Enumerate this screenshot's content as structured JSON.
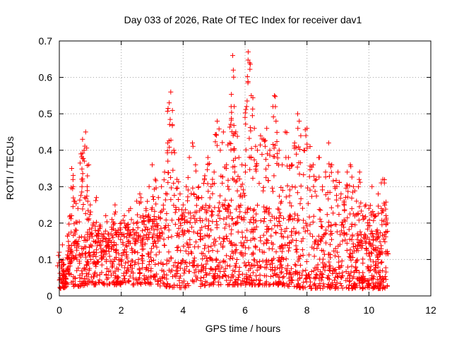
{
  "chart_data": {
    "type": "scatter",
    "title": "Day 033 of 2026, Rate Of TEC Index for receiver dav1",
    "xlabel": "GPS time / hours",
    "ylabel": "ROTI / TECUs",
    "xlim": [
      0,
      12
    ],
    "ylim": [
      0,
      0.7
    ],
    "x_ticks": [
      "0",
      "2",
      "4",
      "6",
      "8",
      "10",
      "12"
    ],
    "y_ticks": [
      "0",
      "0.1",
      "0.2",
      "0.3",
      "0.4",
      "0.5",
      "0.6",
      "0.7"
    ],
    "grid": true,
    "marker": "plus",
    "color": "#ff0000",
    "series": [
      {
        "points": [
          [
            0.0,
            0.12
          ],
          [
            0.1,
            0.14
          ],
          [
            0.15,
            0.07
          ],
          [
            0.2,
            0.05
          ],
          [
            0.3,
            0.17
          ],
          [
            0.35,
            0.22
          ],
          [
            0.4,
            0.35
          ],
          [
            0.45,
            0.3
          ],
          [
            0.5,
            0.26
          ],
          [
            0.55,
            0.18
          ],
          [
            0.6,
            0.24
          ],
          [
            0.7,
            0.39
          ],
          [
            0.75,
            0.43
          ],
          [
            0.8,
            0.4
          ],
          [
            0.85,
            0.45
          ],
          [
            0.9,
            0.3
          ],
          [
            0.95,
            0.36
          ],
          [
            1.0,
            0.25
          ],
          [
            1.1,
            0.2
          ],
          [
            1.2,
            0.27
          ],
          [
            1.3,
            0.19
          ],
          [
            1.4,
            0.15
          ],
          [
            1.5,
            0.22
          ],
          [
            1.6,
            0.17
          ],
          [
            1.7,
            0.21
          ],
          [
            1.8,
            0.25
          ],
          [
            1.9,
            0.18
          ],
          [
            2.0,
            0.2
          ],
          [
            2.1,
            0.22
          ],
          [
            2.2,
            0.18
          ],
          [
            2.3,
            0.24
          ],
          [
            2.4,
            0.2
          ],
          [
            2.5,
            0.26
          ],
          [
            2.6,
            0.28
          ],
          [
            2.7,
            0.22
          ],
          [
            2.8,
            0.24
          ],
          [
            2.9,
            0.3
          ],
          [
            3.0,
            0.36
          ],
          [
            3.1,
            0.32
          ],
          [
            3.2,
            0.27
          ],
          [
            3.3,
            0.3
          ],
          [
            3.4,
            0.34
          ],
          [
            3.5,
            0.42
          ],
          [
            3.55,
            0.53
          ],
          [
            3.6,
            0.56
          ],
          [
            3.65,
            0.47
          ],
          [
            3.7,
            0.4
          ],
          [
            3.8,
            0.32
          ],
          [
            3.9,
            0.28
          ],
          [
            4.0,
            0.25
          ],
          [
            4.1,
            0.3
          ],
          [
            4.2,
            0.38
          ],
          [
            4.3,
            0.42
          ],
          [
            4.4,
            0.36
          ],
          [
            4.5,
            0.3
          ],
          [
            4.6,
            0.27
          ],
          [
            4.7,
            0.33
          ],
          [
            4.8,
            0.38
          ],
          [
            4.9,
            0.3
          ],
          [
            5.0,
            0.34
          ],
          [
            5.1,
            0.48
          ],
          [
            5.2,
            0.4
          ],
          [
            5.3,
            0.45
          ],
          [
            5.4,
            0.36
          ],
          [
            5.5,
            0.42
          ],
          [
            5.55,
            0.52
          ],
          [
            5.6,
            0.66
          ],
          [
            5.62,
            0.62
          ],
          [
            5.65,
            0.52
          ],
          [
            5.7,
            0.45
          ],
          [
            5.8,
            0.38
          ],
          [
            5.9,
            0.36
          ],
          [
            6.0,
            0.49
          ],
          [
            6.05,
            0.52
          ],
          [
            6.1,
            0.67
          ],
          [
            6.15,
            0.64
          ],
          [
            6.2,
            0.55
          ],
          [
            6.3,
            0.46
          ],
          [
            6.4,
            0.4
          ],
          [
            6.5,
            0.44
          ],
          [
            6.6,
            0.43
          ],
          [
            6.7,
            0.46
          ],
          [
            6.8,
            0.4
          ],
          [
            6.9,
            0.52
          ],
          [
            6.95,
            0.55
          ],
          [
            7.0,
            0.48
          ],
          [
            7.1,
            0.4
          ],
          [
            7.2,
            0.36
          ],
          [
            7.3,
            0.45
          ],
          [
            7.4,
            0.38
          ],
          [
            7.5,
            0.36
          ],
          [
            7.6,
            0.42
          ],
          [
            7.7,
            0.5
          ],
          [
            7.75,
            0.48
          ],
          [
            7.8,
            0.44
          ],
          [
            7.9,
            0.4
          ],
          [
            8.0,
            0.46
          ],
          [
            8.1,
            0.41
          ],
          [
            8.2,
            0.36
          ],
          [
            8.3,
            0.32
          ],
          [
            8.4,
            0.38
          ],
          [
            8.5,
            0.3
          ],
          [
            8.6,
            0.34
          ],
          [
            8.7,
            0.42
          ],
          [
            8.8,
            0.36
          ],
          [
            8.9,
            0.3
          ],
          [
            9.0,
            0.34
          ],
          [
            9.1,
            0.28
          ],
          [
            9.2,
            0.26
          ],
          [
            9.3,
            0.34
          ],
          [
            9.4,
            0.36
          ],
          [
            9.5,
            0.3
          ],
          [
            9.6,
            0.26
          ],
          [
            9.7,
            0.34
          ],
          [
            9.8,
            0.22
          ],
          [
            9.9,
            0.25
          ],
          [
            10.0,
            0.24
          ],
          [
            10.1,
            0.3
          ],
          [
            10.2,
            0.22
          ],
          [
            10.3,
            0.28
          ],
          [
            10.4,
            0.24
          ],
          [
            10.45,
            0.32
          ],
          [
            10.5,
            0.31
          ],
          [
            10.55,
            0.22
          ],
          [
            10.6,
            0.2
          ]
        ]
      }
    ],
    "dense_band": {
      "x_range": [
        0,
        10.6
      ],
      "envelope": [
        [
          0.0,
          0.02,
          0.1
        ],
        [
          1.0,
          0.03,
          0.2
        ],
        [
          2.0,
          0.03,
          0.2
        ],
        [
          3.0,
          0.03,
          0.22
        ],
        [
          4.0,
          0.02,
          0.25
        ],
        [
          5.0,
          0.03,
          0.25
        ],
        [
          6.0,
          0.03,
          0.25
        ],
        [
          7.0,
          0.03,
          0.24
        ],
        [
          8.0,
          0.02,
          0.22
        ],
        [
          9.0,
          0.02,
          0.2
        ],
        [
          10.0,
          0.02,
          0.18
        ],
        [
          10.6,
          0.02,
          0.16
        ]
      ],
      "count": 1600
    }
  }
}
